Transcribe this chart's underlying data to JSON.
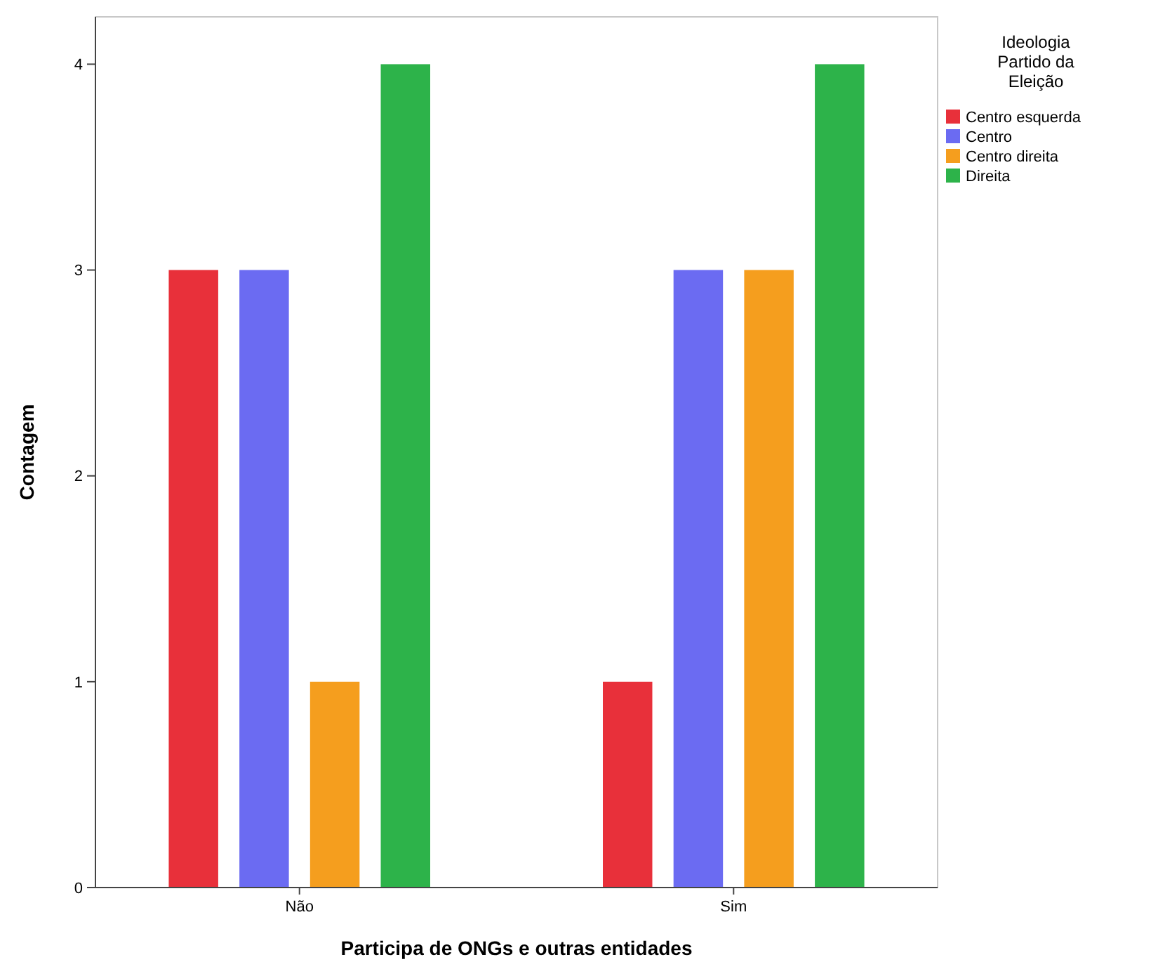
{
  "chart_data": {
    "type": "bar",
    "xlabel": "Participa de ONGs e outras entidades",
    "ylabel": "Contagem",
    "legend_title": "Ideologia Partido da Eleição",
    "categories": [
      "Não",
      "Sim"
    ],
    "series": [
      {
        "name": "Centro esquerda",
        "color": "#e8303a",
        "values": [
          3,
          1
        ]
      },
      {
        "name": "Centro",
        "color": "#6b6bf2",
        "values": [
          3,
          3
        ]
      },
      {
        "name": "Centro direita",
        "color": "#f59e1e",
        "values": [
          1,
          3
        ]
      },
      {
        "name": "Direita",
        "color": "#2db34a",
        "values": [
          4,
          4
        ]
      }
    ],
    "ylim": [
      0,
      4.23
    ],
    "yticks": [
      0,
      1,
      2,
      3,
      4
    ],
    "grid": false,
    "legend": "top right"
  }
}
